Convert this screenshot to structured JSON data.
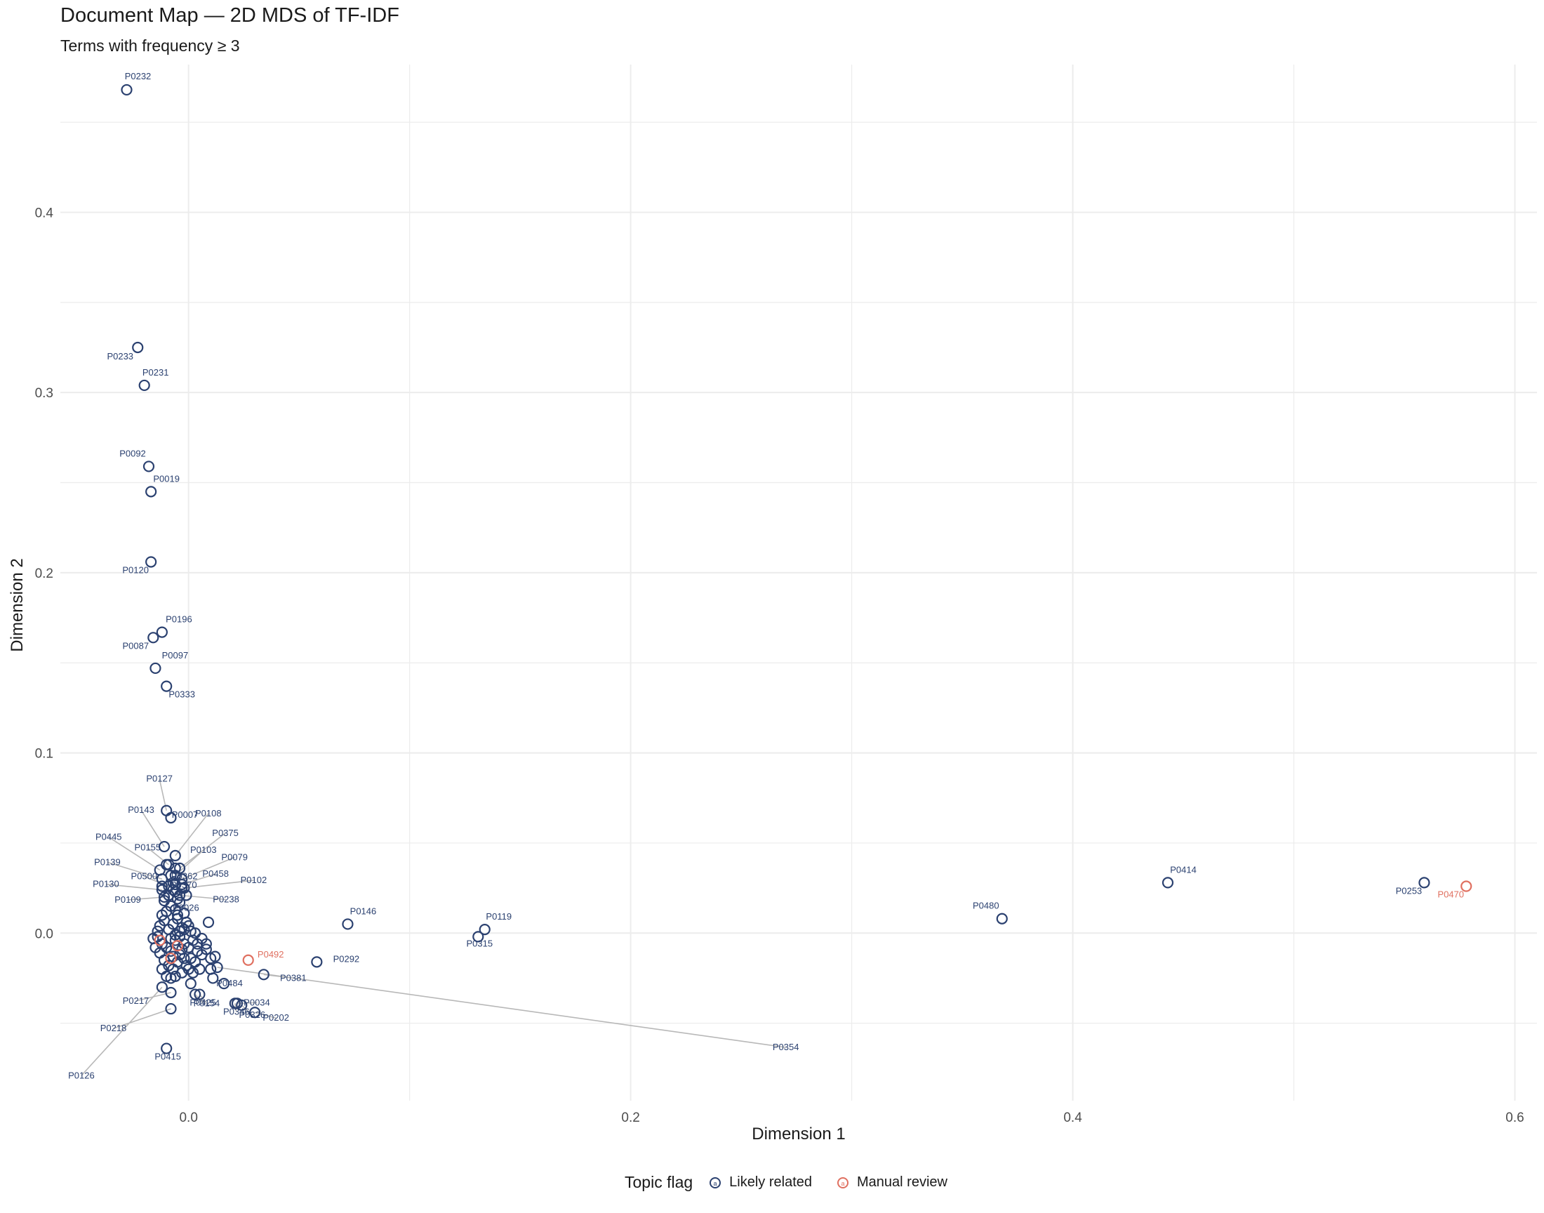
{
  "chart_data": {
    "type": "scatter",
    "title": "Document Map — 2D MDS of TF-IDF",
    "subtitle": "Terms with frequency ≥ 3",
    "xlabel": "Dimension 1",
    "ylabel": "Dimension 2",
    "xlim": [
      -0.058,
      0.61
    ],
    "ylim": [
      -0.093,
      0.482
    ],
    "x_ticks": [
      "0.0",
      "0.2",
      "0.4",
      "0.6"
    ],
    "x_tick_values": [
      0.0,
      0.2,
      0.4,
      0.6
    ],
    "y_ticks": [
      "0.0",
      "0.1",
      "0.2",
      "0.3",
      "0.4"
    ],
    "y_tick_values": [
      0.0,
      0.1,
      0.2,
      0.3,
      0.4
    ],
    "grid": true,
    "legend_position": "bottom",
    "legend": {
      "title": "Topic flag",
      "entries": [
        {
          "label": "Likely related",
          "color": "#2b4170"
        },
        {
          "label": "Manual review",
          "color": "#e07060"
        }
      ]
    },
    "colors": {
      "Likely related": "#2b4170",
      "Manual review": "#e07060",
      "leader": "#b8b8b8"
    },
    "labeled_points": [
      {
        "id": "P0232",
        "x": -0.028,
        "y": 0.468,
        "group": "Likely related"
      },
      {
        "id": "P0233",
        "x": -0.023,
        "y": 0.325,
        "group": "Likely related"
      },
      {
        "id": "P0231",
        "x": -0.02,
        "y": 0.304,
        "group": "Likely related"
      },
      {
        "id": "P0092",
        "x": -0.018,
        "y": 0.259,
        "group": "Likely related"
      },
      {
        "id": "P0019",
        "x": -0.017,
        "y": 0.245,
        "group": "Likely related"
      },
      {
        "id": "P0120",
        "x": -0.017,
        "y": 0.206,
        "group": "Likely related"
      },
      {
        "id": "P0196",
        "x": -0.012,
        "y": 0.167,
        "group": "Likely related"
      },
      {
        "id": "P0087",
        "x": -0.016,
        "y": 0.164,
        "group": "Likely related"
      },
      {
        "id": "P0097",
        "x": -0.015,
        "y": 0.147,
        "group": "Likely related"
      },
      {
        "id": "P0333",
        "x": -0.01,
        "y": 0.137,
        "group": "Likely related"
      },
      {
        "id": "P0127",
        "x": -0.01,
        "y": 0.068,
        "group": "Likely related"
      },
      {
        "id": "P0143",
        "x": -0.011,
        "y": 0.048,
        "group": "Likely related"
      },
      {
        "id": "P0108",
        "x": -0.006,
        "y": 0.043,
        "group": "Likely related"
      },
      {
        "id": "P0007",
        "x": -0.008,
        "y": 0.064,
        "group": "Likely related"
      },
      {
        "id": "P0375",
        "x": -0.004,
        "y": 0.036,
        "group": "Likely related"
      },
      {
        "id": "P0445",
        "x": -0.013,
        "y": 0.035,
        "group": "Likely related"
      },
      {
        "id": "P0155",
        "x": -0.009,
        "y": 0.038,
        "group": "Likely related"
      },
      {
        "id": "P0103",
        "x": -0.006,
        "y": 0.032,
        "group": "Likely related"
      },
      {
        "id": "P0079",
        "x": -0.003,
        "y": 0.03,
        "group": "Likely related"
      },
      {
        "id": "P0139",
        "x": -0.012,
        "y": 0.03,
        "group": "Likely related"
      },
      {
        "id": "P0362",
        "x": -0.007,
        "y": 0.028,
        "group": "Likely related"
      },
      {
        "id": "P0458",
        "x": -0.003,
        "y": 0.027,
        "group": "Likely related"
      },
      {
        "id": "P0500",
        "x": -0.009,
        "y": 0.026,
        "group": "Likely related"
      },
      {
        "id": "P0130",
        "x": -0.012,
        "y": 0.024,
        "group": "Likely related"
      },
      {
        "id": "P0102",
        "x": -0.002,
        "y": 0.025,
        "group": "Likely related"
      },
      {
        "id": "P0370",
        "x": -0.006,
        "y": 0.023,
        "group": "Likely related"
      },
      {
        "id": "P0109",
        "x": -0.011,
        "y": 0.02,
        "group": "Likely related"
      },
      {
        "id": "P0238",
        "x": -0.004,
        "y": 0.021,
        "group": "Likely related"
      },
      {
        "id": "P0026",
        "x": -0.005,
        "y": 0.01,
        "group": "Likely related"
      },
      {
        "id": "P0146",
        "x": 0.072,
        "y": 0.005,
        "group": "Likely related"
      },
      {
        "id": "P0119",
        "x": 0.134,
        "y": 0.002,
        "group": "Likely related"
      },
      {
        "id": "P0315",
        "x": 0.131,
        "y": -0.002,
        "group": "Likely related"
      },
      {
        "id": "P0492",
        "x": 0.027,
        "y": -0.015,
        "group": "Manual review"
      },
      {
        "id": "P0292",
        "x": 0.058,
        "y": -0.016,
        "group": "Likely related"
      },
      {
        "id": "P0484",
        "x": 0.016,
        "y": -0.028,
        "group": "Likely related"
      },
      {
        "id": "P0381",
        "x": 0.034,
        "y": -0.023,
        "group": "Likely related"
      },
      {
        "id": "P0034",
        "x": 0.022,
        "y": -0.039,
        "group": "Likely related"
      },
      {
        "id": "P0202",
        "x": 0.03,
        "y": -0.044,
        "group": "Likely related"
      },
      {
        "id": "P0154",
        "x": 0.005,
        "y": -0.034,
        "group": "Likely related"
      },
      {
        "id": "P0346",
        "x": 0.021,
        "y": -0.039,
        "group": "Likely related"
      },
      {
        "id": "P0326",
        "x": 0.024,
        "y": -0.04,
        "group": "Likely related"
      },
      {
        "id": "P0425",
        "x": 0.003,
        "y": -0.034,
        "group": "Likely related"
      },
      {
        "id": "P0217",
        "x": -0.008,
        "y": -0.033,
        "group": "Likely related"
      },
      {
        "id": "P0218",
        "x": -0.008,
        "y": -0.042,
        "group": "Likely related"
      },
      {
        "id": "P0415",
        "x": -0.01,
        "y": -0.064,
        "group": "Likely related"
      },
      {
        "id": "P0126",
        "x": -0.012,
        "y": -0.03,
        "group": "Likely related"
      },
      {
        "id": "P0354",
        "x": 0.013,
        "y": -0.019,
        "group": "Likely related"
      },
      {
        "id": "P0480",
        "x": 0.368,
        "y": 0.008,
        "group": "Likely related"
      },
      {
        "id": "P0414",
        "x": 0.443,
        "y": 0.028,
        "group": "Likely related"
      },
      {
        "id": "P0253",
        "x": 0.559,
        "y": 0.028,
        "group": "Likely related"
      },
      {
        "id": "P0470",
        "x": 0.578,
        "y": 0.026,
        "group": "Manual review"
      }
    ],
    "cluster_points": [
      [
        -0.016,
        -0.003
      ],
      [
        -0.014,
        -0.002
      ],
      [
        -0.012,
        -0.006
      ],
      [
        -0.01,
        -0.008
      ],
      [
        -0.008,
        -0.01
      ],
      [
        -0.006,
        -0.004
      ],
      [
        -0.004,
        -0.002
      ],
      [
        -0.002,
        -0.006
      ],
      [
        0.0,
        -0.008
      ],
      [
        0.002,
        -0.004
      ],
      [
        0.004,
        -0.01
      ],
      [
        0.006,
        -0.012
      ],
      [
        0.008,
        -0.006
      ],
      [
        0.01,
        -0.014
      ],
      [
        -0.011,
        -0.015
      ],
      [
        -0.009,
        -0.018
      ],
      [
        -0.007,
        -0.02
      ],
      [
        -0.005,
        -0.016
      ],
      [
        -0.003,
        -0.022
      ],
      [
        -0.001,
        -0.018
      ],
      [
        0.001,
        -0.014
      ],
      [
        0.003,
        -0.016
      ],
      [
        0.005,
        -0.02
      ],
      [
        -0.013,
        0.004
      ],
      [
        -0.011,
        0.007
      ],
      [
        -0.009,
        0.002
      ],
      [
        -0.007,
        0.005
      ],
      [
        -0.005,
        0.008
      ],
      [
        -0.003,
        0.003
      ],
      [
        -0.001,
        0.006
      ],
      [
        0.001,
        0.001
      ],
      [
        0.003,
        0.0
      ],
      [
        -0.012,
        0.01
      ],
      [
        -0.01,
        0.012
      ],
      [
        -0.008,
        0.015
      ],
      [
        -0.006,
        0.013
      ],
      [
        -0.004,
        0.017
      ],
      [
        -0.002,
        0.011
      ],
      [
        -0.011,
        0.018
      ],
      [
        -0.009,
        0.021
      ],
      [
        -0.007,
        0.024
      ],
      [
        -0.005,
        0.019
      ],
      [
        -0.013,
        -0.011
      ],
      [
        -0.012,
        -0.02
      ],
      [
        -0.01,
        -0.024
      ],
      [
        -0.008,
        -0.025
      ],
      [
        -0.006,
        -0.024
      ],
      [
        -0.004,
        -0.012
      ],
      [
        -0.002,
        -0.014
      ],
      [
        0.0,
        -0.02
      ],
      [
        0.002,
        -0.022
      ],
      [
        0.006,
        -0.003
      ],
      [
        0.008,
        -0.009
      ],
      [
        0.009,
        0.006
      ],
      [
        0.012,
        -0.013
      ],
      [
        0.01,
        -0.02
      ],
      [
        0.011,
        -0.025
      ],
      [
        0.001,
        -0.028
      ],
      [
        -0.014,
        0.001
      ],
      [
        -0.015,
        -0.008
      ],
      [
        -0.006,
        -0.001
      ],
      [
        -0.004,
        0.001
      ],
      [
        -0.008,
        -0.003
      ],
      [
        -0.003,
        -0.009
      ],
      [
        -0.007,
        -0.013
      ],
      [
        0.0,
        0.004
      ],
      [
        -0.002,
        0.002
      ],
      [
        0.004,
        -0.006
      ],
      [
        -0.012,
        0.026
      ],
      [
        -0.008,
        0.032
      ],
      [
        -0.006,
        0.027
      ],
      [
        -0.003,
        0.025
      ],
      [
        -0.001,
        0.021
      ],
      [
        -0.01,
        0.038
      ],
      [
        -0.006,
        0.036
      ]
    ],
    "cluster_review_points": [
      [
        -0.013,
        -0.004
      ],
      [
        -0.008,
        -0.014
      ],
      [
        -0.005,
        -0.007
      ]
    ]
  }
}
